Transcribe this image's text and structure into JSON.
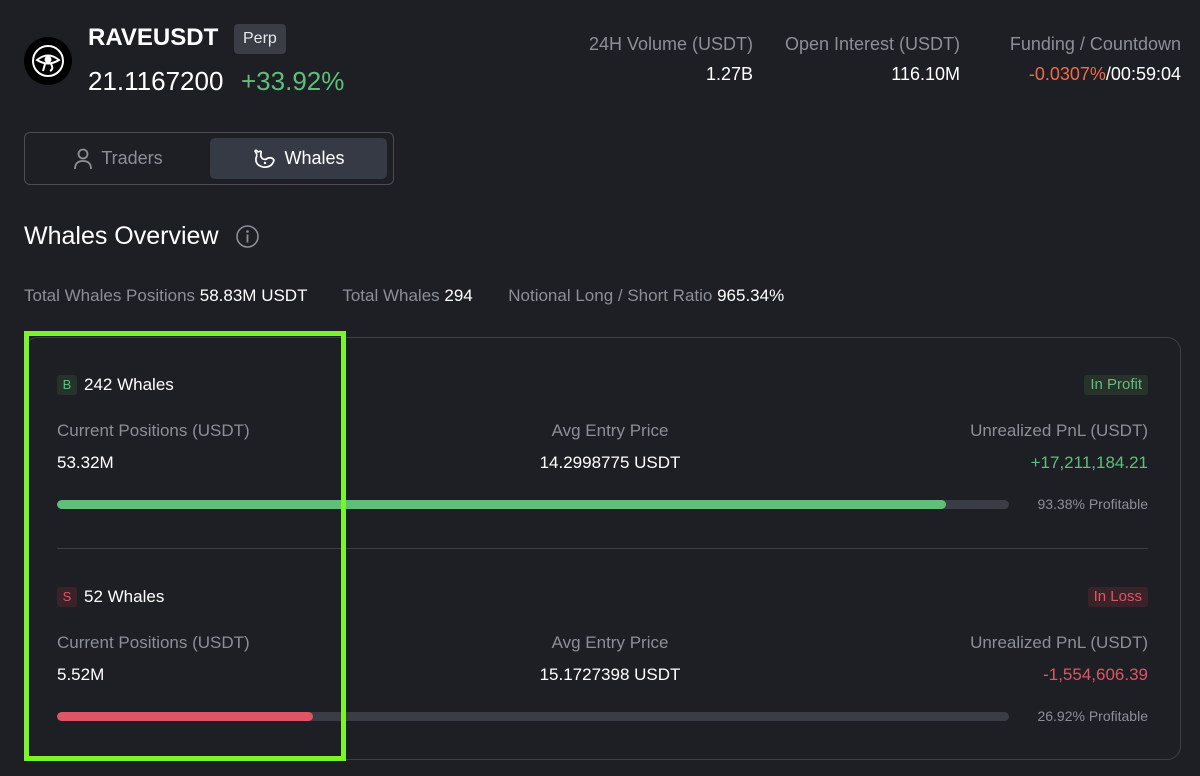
{
  "header": {
    "symbol": "RAVEUSDT",
    "contract_type": "Perp",
    "last_price": "21.1167200",
    "change_percent": "+33.92%",
    "stats": {
      "volume_label": "24H Volume (USDT)",
      "volume_value": "1.27B",
      "open_interest_label": "Open Interest (USDT)",
      "open_interest_value": "116.10M",
      "funding_label": "Funding / Countdown",
      "funding_rate": "-0.0307%",
      "funding_separator": "/",
      "countdown": "00:59:04"
    }
  },
  "tabs": [
    {
      "label": "Traders",
      "icon": "person-icon",
      "active": false
    },
    {
      "label": "Whales",
      "icon": "whale-icon",
      "active": true
    }
  ],
  "overview": {
    "title": "Whales Overview",
    "summary": {
      "total_positions_label": "Total Whales Positions",
      "total_positions_value": "58.83M USDT",
      "total_whales_label": "Total Whales",
      "total_whales_value": "294",
      "ratio_label": "Notional Long / Short Ratio",
      "ratio_value": "965.34%"
    },
    "groups": [
      {
        "side_badge": "B",
        "whales": "242 Whales",
        "status": "In Profit",
        "positions_label": "Current Positions (USDT)",
        "positions_value": "53.32M",
        "entry_label": "Avg Entry Price",
        "entry_value": "14.2998775 USDT",
        "pnl_label": "Unrealized PnL (USDT)",
        "pnl_value": "+17,211,184.21",
        "profitable_fraction": 0.9338,
        "profitable_text": "93.38% Profitable"
      },
      {
        "side_badge": "S",
        "whales": "52 Whales",
        "status": "In Loss",
        "positions_label": "Current Positions (USDT)",
        "positions_value": "5.52M",
        "entry_label": "Avg Entry Price",
        "entry_value": "15.1727398 USDT",
        "pnl_label": "Unrealized PnL (USDT)",
        "pnl_value": "-1,554,606.39",
        "profitable_fraction": 0.2692,
        "profitable_text": "26.92% Profitable"
      }
    ]
  },
  "colors": {
    "background": "#1e1f24",
    "positive": "#5fbf7a",
    "negative": "#e05565",
    "funding_negative": "#f06a4a",
    "highlight": "#7cf42b"
  }
}
